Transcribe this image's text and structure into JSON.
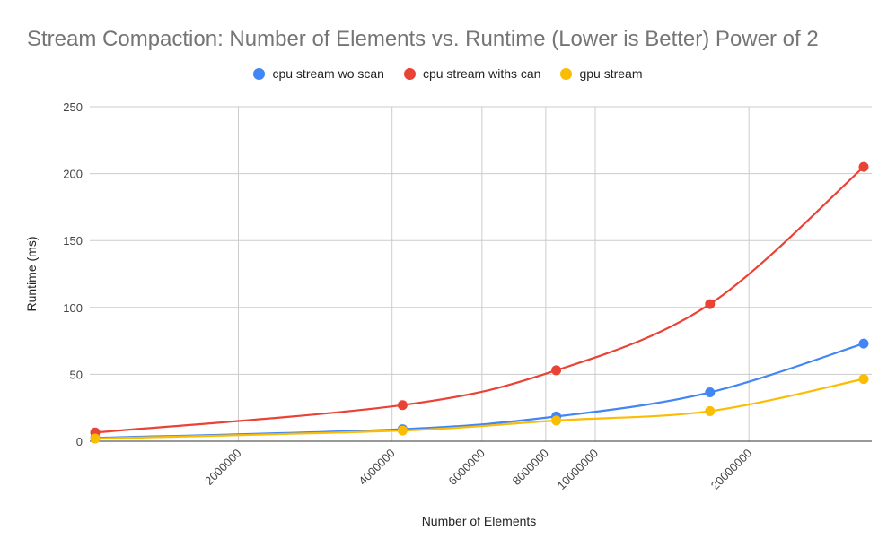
{
  "chart_data": {
    "type": "line",
    "title": "Stream Compaction: Number of Elements vs. Runtime (Lower is Better) Power of 2",
    "xlabel": "Number of Elements",
    "ylabel": "Runtime (ms)",
    "x_scale": "log",
    "ylim": [
      0,
      250
    ],
    "y_ticks": [
      0,
      50,
      100,
      150,
      200,
      250
    ],
    "x_ticks": [
      2000000,
      4000000,
      6000000,
      8000000,
      10000000,
      20000000
    ],
    "x_tick_labels": [
      "2000000",
      "4000000",
      "6000000",
      "8000000",
      "10000000",
      "20000000"
    ],
    "legend_position": "top",
    "grid": true,
    "x": [
      1048576,
      4194304,
      8388608,
      16777216,
      33554432
    ],
    "series": [
      {
        "name": "cpu stream wo scan",
        "color": "#4285F4",
        "values": [
          2.5,
          9,
          18.5,
          36.5,
          73
        ]
      },
      {
        "name": "cpu stream withs can",
        "color": "#EA4335",
        "values": [
          6.5,
          27,
          53,
          102.5,
          205
        ]
      },
      {
        "name": "gpu stream",
        "color": "#FBBC04",
        "values": [
          2,
          8,
          15.5,
          22.5,
          46.5
        ]
      }
    ]
  }
}
